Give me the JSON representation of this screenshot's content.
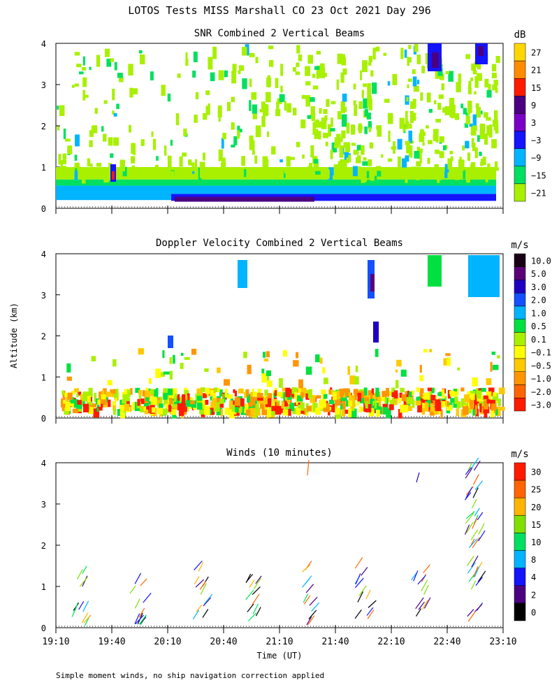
{
  "header": {
    "title": "LOTOS Tests MISS Marshall CO  23 Oct 2021 Day 296",
    "ylabel": "Altitude (km)",
    "xlabel": "Time (UT)",
    "footnote": "Simple moment winds, no ship navigation correction applied"
  },
  "chart_data": [
    {
      "type": "heatmap",
      "title": "SNR Combined 2 Vertical Beams",
      "ylabel": "Altitude (km)",
      "yticks": [
        "0",
        "1",
        "2",
        "3",
        "4"
      ],
      "ylim": [
        0,
        4
      ],
      "colorbar_unit": "dB",
      "colorbar_labels": [
        "27",
        "21",
        "15",
        "9",
        "3",
        "−3",
        "−9",
        "−15",
        "−21"
      ],
      "colorbar_colors": [
        "#ffd700",
        "#ff8c00",
        "#ff1a00",
        "#4b0082",
        "#7b00c8",
        "#1414ff",
        "#00b4ff",
        "#00e060",
        "#a8f000"
      ]
    },
    {
      "type": "heatmap",
      "title": "Doppler Velocity Combined 2 Vertical Beams",
      "ylabel": "Altitude (km)",
      "yticks": [
        "0",
        "1",
        "2",
        "3",
        "4"
      ],
      "ylim": [
        0,
        4
      ],
      "colorbar_unit": "m/s",
      "colorbar_labels": [
        "10.0",
        "5.0",
        "3.0",
        "2.0",
        "1.0",
        "0.5",
        "0.1",
        "−0.1",
        "−0.5",
        "−1.0",
        "−2.0",
        "−3.0"
      ],
      "colorbar_colors": [
        "#1a0014",
        "#5a0078",
        "#2000c0",
        "#1450ff",
        "#00b4ff",
        "#00e040",
        "#a8f000",
        "#ffff00",
        "#ffc800",
        "#ff9600",
        "#ff6400",
        "#ff1a00"
      ]
    },
    {
      "type": "scatter",
      "title": "Winds (10 minutes)",
      "xlabel": "Time (UT)",
      "ylabel": "Altitude (km)",
      "xticks": [
        "19:10",
        "19:40",
        "20:10",
        "20:40",
        "21:10",
        "21:40",
        "22:10",
        "22:40",
        "23:10"
      ],
      "yticks": [
        "0",
        "1",
        "2",
        "3",
        "4"
      ],
      "ylim": [
        0,
        4
      ],
      "colorbar_unit": "m/s",
      "colorbar_labels": [
        "30",
        "25",
        "20",
        "15",
        "10",
        "8",
        "4",
        "2",
        "0"
      ],
      "colorbar_colors": [
        "#ff1a00",
        "#ff6400",
        "#ffb400",
        "#80e000",
        "#00e060",
        "#00b4ff",
        "#1414ff",
        "#4b0082",
        "#000000"
      ]
    }
  ]
}
